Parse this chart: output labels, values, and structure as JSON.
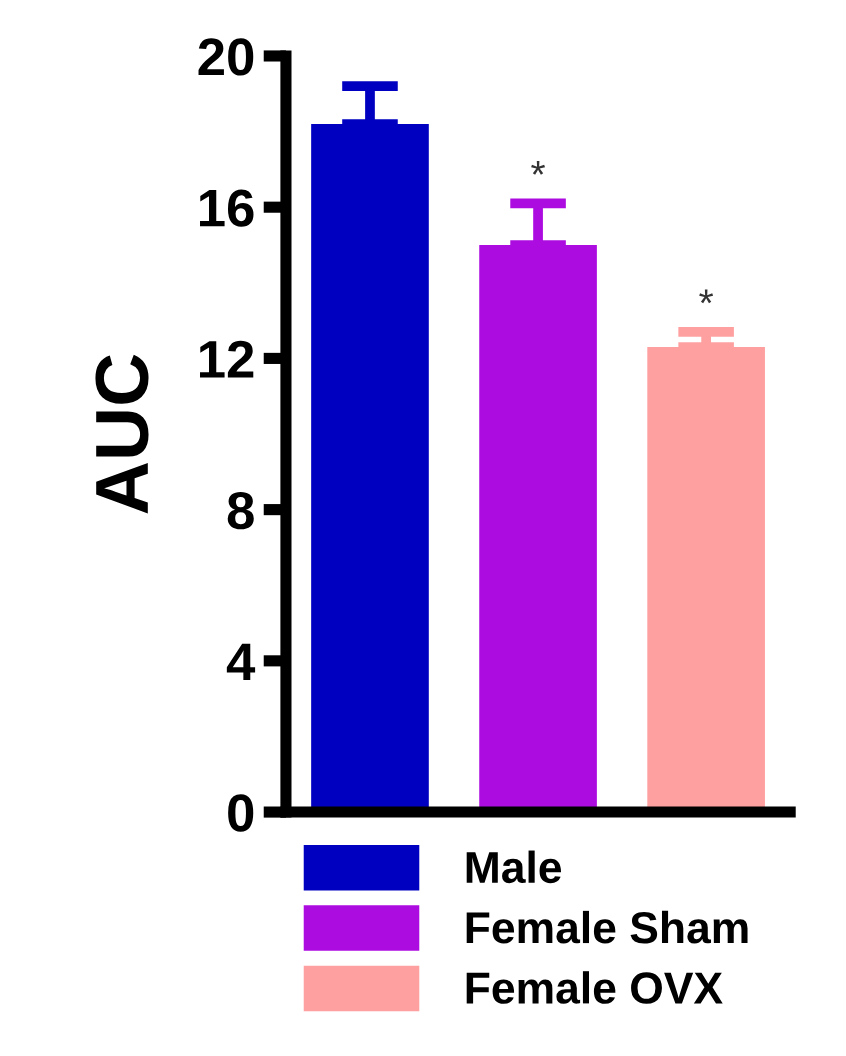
{
  "chart_data": {
    "type": "bar",
    "ylabel": "AUC",
    "categories": [
      null,
      null,
      null
    ],
    "series": [
      {
        "name": "Male",
        "color": "#0000c0",
        "values": [
          18.2,
          null,
          null
        ],
        "errors": [
          1.0,
          null,
          null
        ],
        "value_labels": [
          null,
          null,
          null
        ]
      },
      {
        "name": "Female Sham",
        "color": "#ad0ce0",
        "values": [
          null,
          15.0,
          null
        ],
        "errors": [
          null,
          1.1,
          null
        ],
        "value_labels": [
          null,
          "*",
          null
        ]
      },
      {
        "name": "Female OVX",
        "color": "#ffa0a0",
        "values": [
          null,
          null,
          12.3
        ],
        "errors": [
          null,
          null,
          0.4
        ],
        "value_labels": [
          null,
          null,
          "*"
        ]
      }
    ],
    "ylim": [
      0,
      20
    ],
    "yticks": [
      0,
      4,
      8,
      12,
      16,
      20
    ],
    "grid": false,
    "legend": "bottom"
  }
}
